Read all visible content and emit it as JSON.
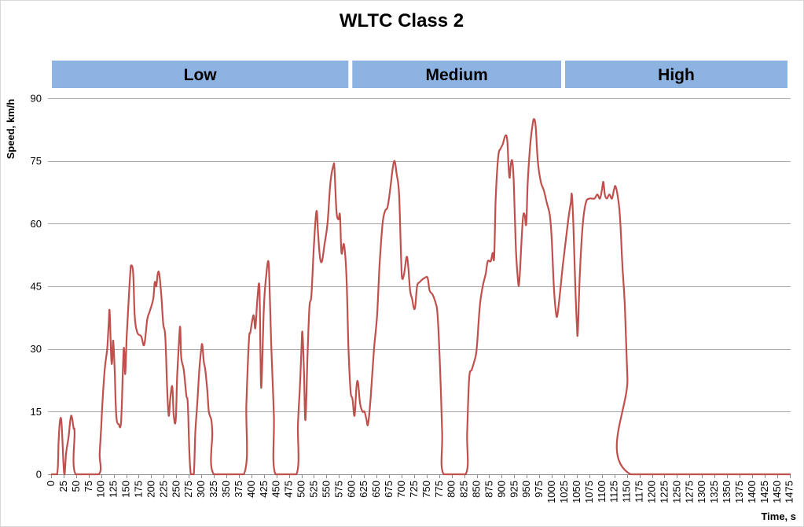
{
  "chart_data": {
    "type": "line",
    "title": "WLTC Class 2",
    "xlabel": "Time, s",
    "ylabel": "Speed, km/h",
    "xlim": [
      0,
      1477
    ],
    "ylim": [
      0,
      90
    ],
    "x_ticks": [
      0,
      25,
      50,
      75,
      100,
      125,
      150,
      175,
      200,
      225,
      250,
      275,
      300,
      325,
      350,
      375,
      400,
      425,
      450,
      475,
      500,
      525,
      550,
      575,
      600,
      625,
      650,
      675,
      700,
      725,
      750,
      775,
      800,
      825,
      850,
      875,
      900,
      925,
      950,
      975,
      1000,
      1025,
      1050,
      1075,
      1100,
      1125,
      1150,
      1175,
      1200,
      1225,
      1250,
      1275,
      1300,
      1325,
      1350,
      1375,
      1400,
      1425,
      1450,
      1475
    ],
    "y_ticks": [
      0,
      15,
      30,
      45,
      60,
      75,
      90
    ],
    "grid": "horizontal",
    "line_color": "#c0504d",
    "phases": [
      {
        "label": "Low",
        "start": 0,
        "end": 600
      },
      {
        "label": "Medium",
        "start": 600,
        "end": 1025
      },
      {
        "label": "High",
        "start": 1025,
        "end": 1477
      }
    ],
    "phase_color": "#8db3e2",
    "series": [
      {
        "points": [
          [
            0,
            0
          ],
          [
            12,
            0
          ],
          [
            15,
            8
          ],
          [
            18,
            13
          ],
          [
            21,
            12
          ],
          [
            25,
            2
          ],
          [
            27,
            0
          ],
          [
            30,
            5
          ],
          [
            35,
            9
          ],
          [
            40,
            14
          ],
          [
            45,
            11
          ],
          [
            47,
            10
          ],
          [
            49,
            0
          ],
          [
            95,
            0
          ],
          [
            97,
            5
          ],
          [
            100,
            11
          ],
          [
            102,
            16
          ],
          [
            107,
            25
          ],
          [
            112,
            30
          ],
          [
            115,
            36
          ],
          [
            117,
            39
          ],
          [
            120,
            28
          ],
          [
            122,
            27
          ],
          [
            124,
            32
          ],
          [
            127,
            25
          ],
          [
            129,
            17
          ],
          [
            131,
            13
          ],
          [
            135,
            12
          ],
          [
            140,
            13
          ],
          [
            145,
            30
          ],
          [
            148,
            24
          ],
          [
            151,
            33
          ],
          [
            155,
            42
          ],
          [
            158,
            48
          ],
          [
            160,
            50
          ],
          [
            164,
            48
          ],
          [
            167,
            38
          ],
          [
            172,
            34
          ],
          [
            180,
            33
          ],
          [
            186,
            31
          ],
          [
            192,
            37
          ],
          [
            197,
            39
          ],
          [
            204,
            42
          ],
          [
            207,
            46
          ],
          [
            210,
            45
          ],
          [
            213,
            48
          ],
          [
            216,
            48
          ],
          [
            220,
            43
          ],
          [
            224,
            36
          ],
          [
            228,
            33
          ],
          [
            232,
            20
          ],
          [
            235,
            14
          ],
          [
            238,
            18
          ],
          [
            242,
            21
          ],
          [
            245,
            14
          ],
          [
            249,
            13
          ],
          [
            252,
            24
          ],
          [
            256,
            33
          ],
          [
            258,
            35
          ],
          [
            260,
            28
          ],
          [
            265,
            25
          ],
          [
            270,
            19
          ],
          [
            273,
            17
          ],
          [
            276,
            6
          ],
          [
            279,
            0
          ],
          [
            285,
            0
          ],
          [
            288,
            10
          ],
          [
            292,
            17
          ],
          [
            296,
            25
          ],
          [
            300,
            30
          ],
          [
            302,
            31
          ],
          [
            305,
            27
          ],
          [
            308,
            25
          ],
          [
            312,
            20
          ],
          [
            315,
            15
          ],
          [
            320,
            13
          ],
          [
            322,
            10
          ],
          [
            325,
            0
          ],
          [
            385,
            0
          ],
          [
            390,
            17
          ],
          [
            395,
            32
          ],
          [
            398,
            34
          ],
          [
            402,
            37
          ],
          [
            405,
            38
          ],
          [
            408,
            35
          ],
          [
            412,
            42
          ],
          [
            416,
            45
          ],
          [
            418,
            30
          ],
          [
            420,
            21
          ],
          [
            425,
            40
          ],
          [
            430,
            48
          ],
          [
            434,
            51
          ],
          [
            436,
            46
          ],
          [
            440,
            30
          ],
          [
            445,
            14
          ],
          [
            448,
            0
          ],
          [
            490,
            0
          ],
          [
            493,
            12
          ],
          [
            497,
            21
          ],
          [
            500,
            30
          ],
          [
            502,
            34
          ],
          [
            505,
            25
          ],
          [
            508,
            13
          ],
          [
            512,
            28
          ],
          [
            516,
            40
          ],
          [
            520,
            43
          ],
          [
            525,
            55
          ],
          [
            530,
            63
          ],
          [
            533,
            58
          ],
          [
            537,
            52
          ],
          [
            541,
            51
          ],
          [
            546,
            55
          ],
          [
            552,
            60
          ],
          [
            558,
            70
          ],
          [
            564,
            74
          ],
          [
            566,
            73
          ],
          [
            570,
            63
          ],
          [
            574,
            61
          ],
          [
            577,
            62
          ],
          [
            580,
            53
          ],
          [
            585,
            55
          ],
          [
            590,
            47
          ],
          [
            594,
            30
          ],
          [
            598,
            20
          ],
          [
            602,
            18
          ],
          [
            606,
            14
          ],
          [
            610,
            21
          ],
          [
            613,
            22
          ],
          [
            617,
            17
          ],
          [
            622,
            15
          ],
          [
            626,
            15
          ],
          [
            630,
            13
          ],
          [
            633,
            12
          ],
          [
            638,
            18
          ],
          [
            645,
            30
          ],
          [
            651,
            38
          ],
          [
            656,
            50
          ],
          [
            662,
            60
          ],
          [
            667,
            63
          ],
          [
            672,
            64
          ],
          [
            677,
            68
          ],
          [
            682,
            73
          ],
          [
            686,
            75
          ],
          [
            690,
            72
          ],
          [
            695,
            67
          ],
          [
            699,
            52
          ],
          [
            701,
            47
          ],
          [
            705,
            48
          ],
          [
            710,
            52
          ],
          [
            713,
            50
          ],
          [
            717,
            44
          ],
          [
            721,
            42
          ],
          [
            724,
            40
          ],
          [
            727,
            40
          ],
          [
            731,
            45
          ],
          [
            736,
            46
          ],
          [
            746,
            47
          ],
          [
            752,
            47
          ],
          [
            756,
            44
          ],
          [
            762,
            43
          ],
          [
            768,
            41
          ],
          [
            772,
            38
          ],
          [
            777,
            25
          ],
          [
            781,
            10
          ],
          [
            784,
            0
          ],
          [
            828,
            0
          ],
          [
            831,
            10
          ],
          [
            835,
            23
          ],
          [
            840,
            25
          ],
          [
            845,
            27
          ],
          [
            850,
            30
          ],
          [
            856,
            40
          ],
          [
            862,
            45
          ],
          [
            868,
            48
          ],
          [
            872,
            51
          ],
          [
            878,
            51
          ],
          [
            882,
            53
          ],
          [
            885,
            52
          ],
          [
            888,
            66
          ],
          [
            893,
            76
          ],
          [
            898,
            78
          ],
          [
            902,
            79
          ],
          [
            907,
            81
          ],
          [
            911,
            80
          ],
          [
            914,
            73
          ],
          [
            916,
            71
          ],
          [
            918,
            74
          ],
          [
            921,
            75
          ],
          [
            924,
            70
          ],
          [
            928,
            55
          ],
          [
            932,
            47
          ],
          [
            935,
            46
          ],
          [
            940,
            57
          ],
          [
            943,
            62
          ],
          [
            946,
            62
          ],
          [
            949,
            60
          ],
          [
            952,
            70
          ],
          [
            957,
            79
          ],
          [
            962,
            84
          ],
          [
            965,
            85
          ],
          [
            968,
            83
          ],
          [
            972,
            75
          ],
          [
            978,
            70
          ],
          [
            984,
            68
          ],
          [
            990,
            65
          ],
          [
            996,
            62
          ],
          [
            1000,
            56
          ],
          [
            1004,
            45
          ],
          [
            1008,
            39
          ],
          [
            1011,
            38
          ],
          [
            1016,
            43
          ],
          [
            1022,
            50
          ],
          [
            1028,
            56
          ],
          [
            1034,
            62
          ],
          [
            1038,
            65
          ],
          [
            1040,
            67
          ],
          [
            1043,
            60
          ],
          [
            1047,
            45
          ],
          [
            1050,
            36
          ],
          [
            1052,
            34
          ],
          [
            1056,
            48
          ],
          [
            1062,
            60
          ],
          [
            1068,
            65
          ],
          [
            1075,
            66
          ],
          [
            1085,
            66
          ],
          [
            1091,
            67
          ],
          [
            1096,
            66
          ],
          [
            1100,
            68
          ],
          [
            1103,
            70
          ],
          [
            1106,
            67
          ],
          [
            1110,
            66
          ],
          [
            1115,
            67
          ],
          [
            1120,
            66
          ],
          [
            1124,
            68
          ],
          [
            1127,
            69
          ],
          [
            1131,
            67
          ],
          [
            1136,
            62
          ],
          [
            1141,
            50
          ],
          [
            1146,
            40
          ],
          [
            1151,
            23
          ],
          [
            1157,
            0
          ],
          [
            1477,
            0
          ]
        ]
      }
    ]
  }
}
